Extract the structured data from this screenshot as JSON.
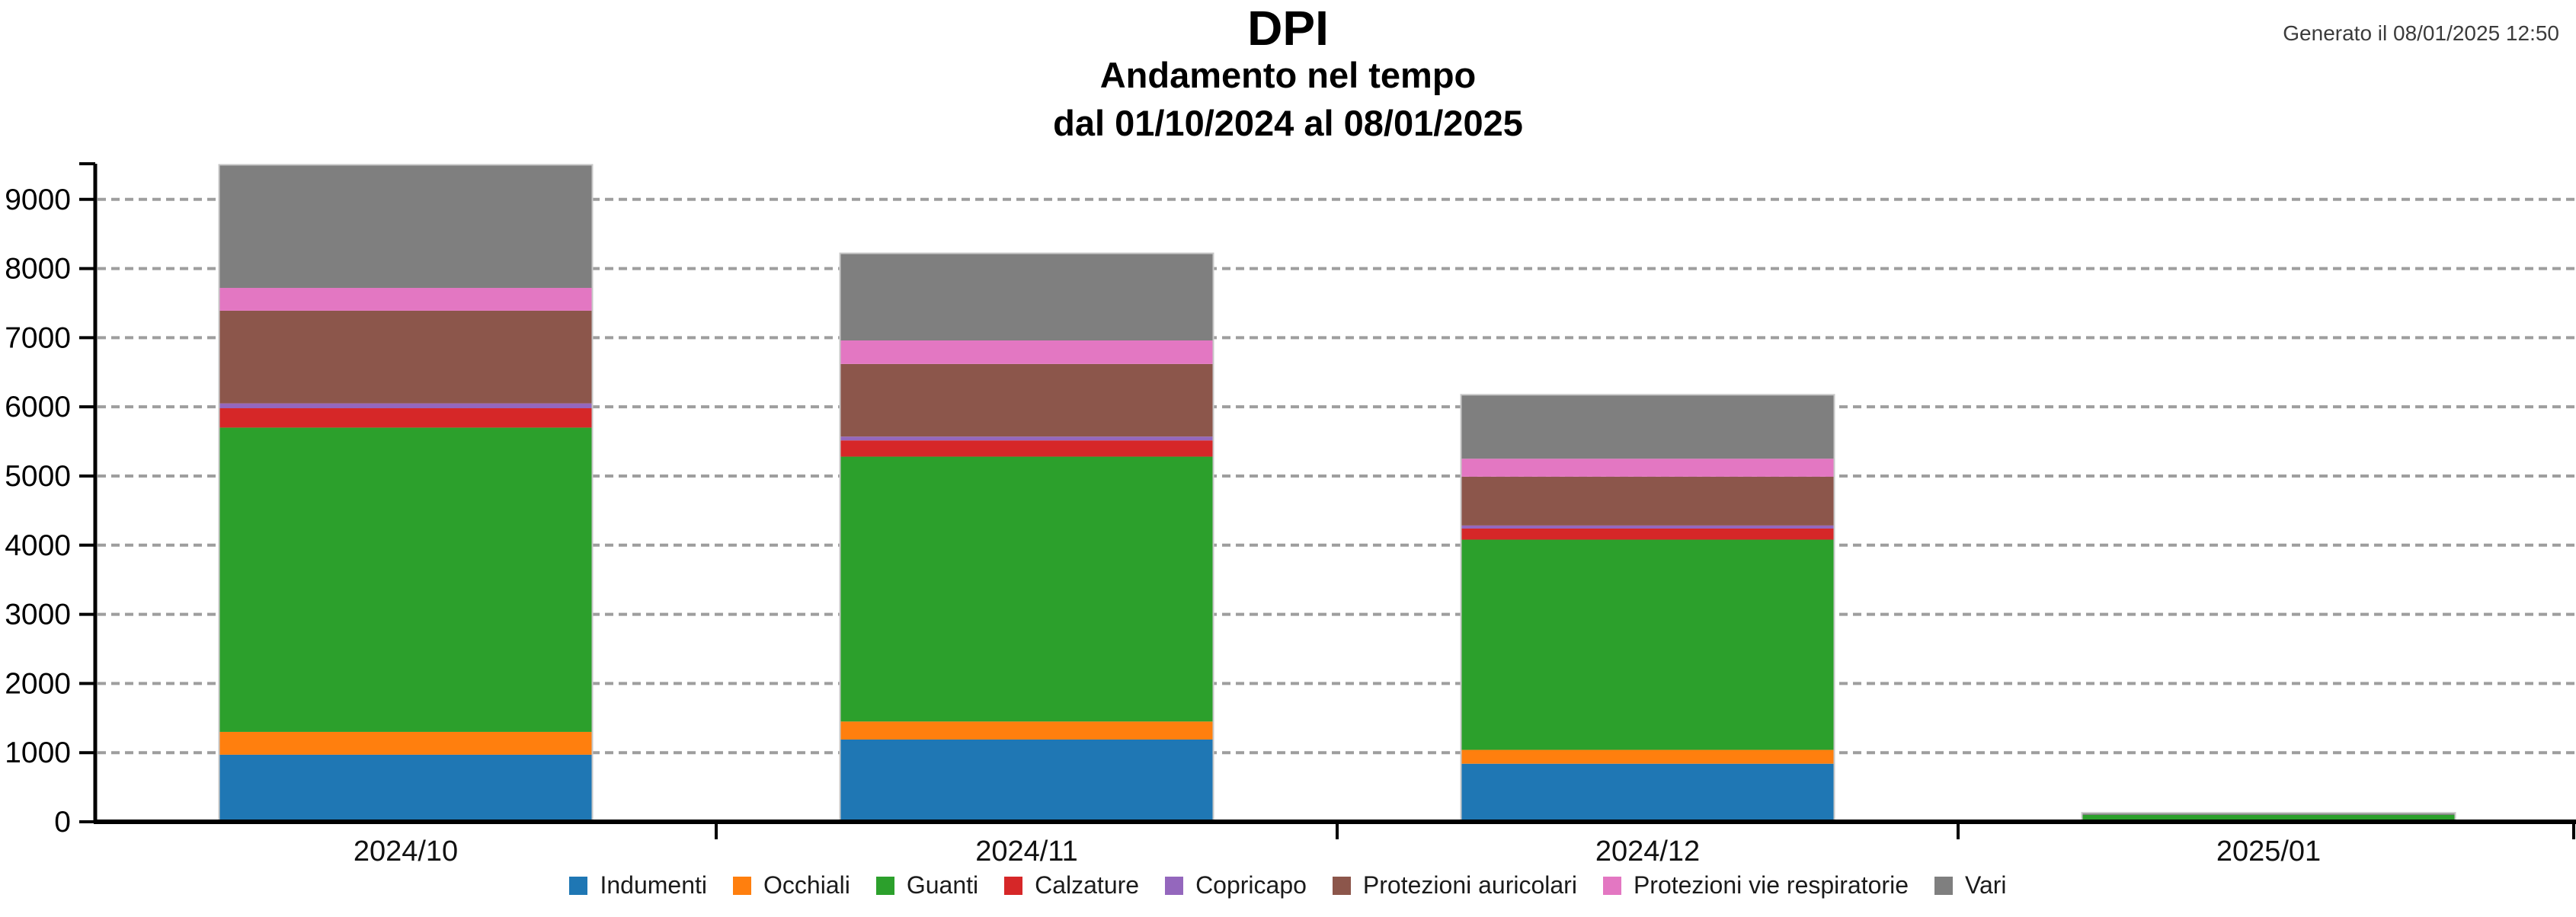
{
  "header": {
    "title": "DPI",
    "subtitle1": "Andamento nel tempo",
    "subtitle2": "dal 01/10/2024 al 08/01/2025",
    "generated": "Generato il 08/01/2025 12:50"
  },
  "chart_data": {
    "type": "bar",
    "stacked": true,
    "title": "DPI",
    "subtitle": "Andamento nel tempo dal 01/10/2024 al 08/01/2025",
    "categories": [
      "2024/10",
      "2024/11",
      "2024/12",
      "2025/01"
    ],
    "series": [
      {
        "name": "Indumenti",
        "color": "#1f77b4",
        "values": [
          970,
          1190,
          840,
          0
        ]
      },
      {
        "name": "Occhiali",
        "color": "#ff7f0e",
        "values": [
          330,
          260,
          200,
          0
        ]
      },
      {
        "name": "Guanti",
        "color": "#2ca02c",
        "values": [
          4400,
          3830,
          3040,
          100
        ]
      },
      {
        "name": "Calzature",
        "color": "#d62728",
        "values": [
          280,
          235,
          160,
          0
        ]
      },
      {
        "name": "Copricapo",
        "color": "#9467bd",
        "values": [
          70,
          55,
          45,
          0
        ]
      },
      {
        "name": "Protezioni auricolari",
        "color": "#8c564b",
        "values": [
          1340,
          1050,
          705,
          0
        ]
      },
      {
        "name": "Protezioni vie respiratorie",
        "color": "#e377c2",
        "values": [
          330,
          340,
          260,
          0
        ]
      },
      {
        "name": "Vari",
        "color": "#7f7f7f",
        "values": [
          1780,
          1260,
          925,
          30
        ]
      }
    ],
    "yticks": [
      0,
      1000,
      2000,
      3000,
      4000,
      5000,
      6000,
      7000,
      8000,
      9000
    ],
    "ylim": [
      0,
      9515
    ],
    "xlabel": "",
    "ylabel": "",
    "grid": "horizontal-dashed",
    "gridline_color": "#9e9e9e",
    "axis_color": "#000000",
    "legend_position": "bottom"
  }
}
